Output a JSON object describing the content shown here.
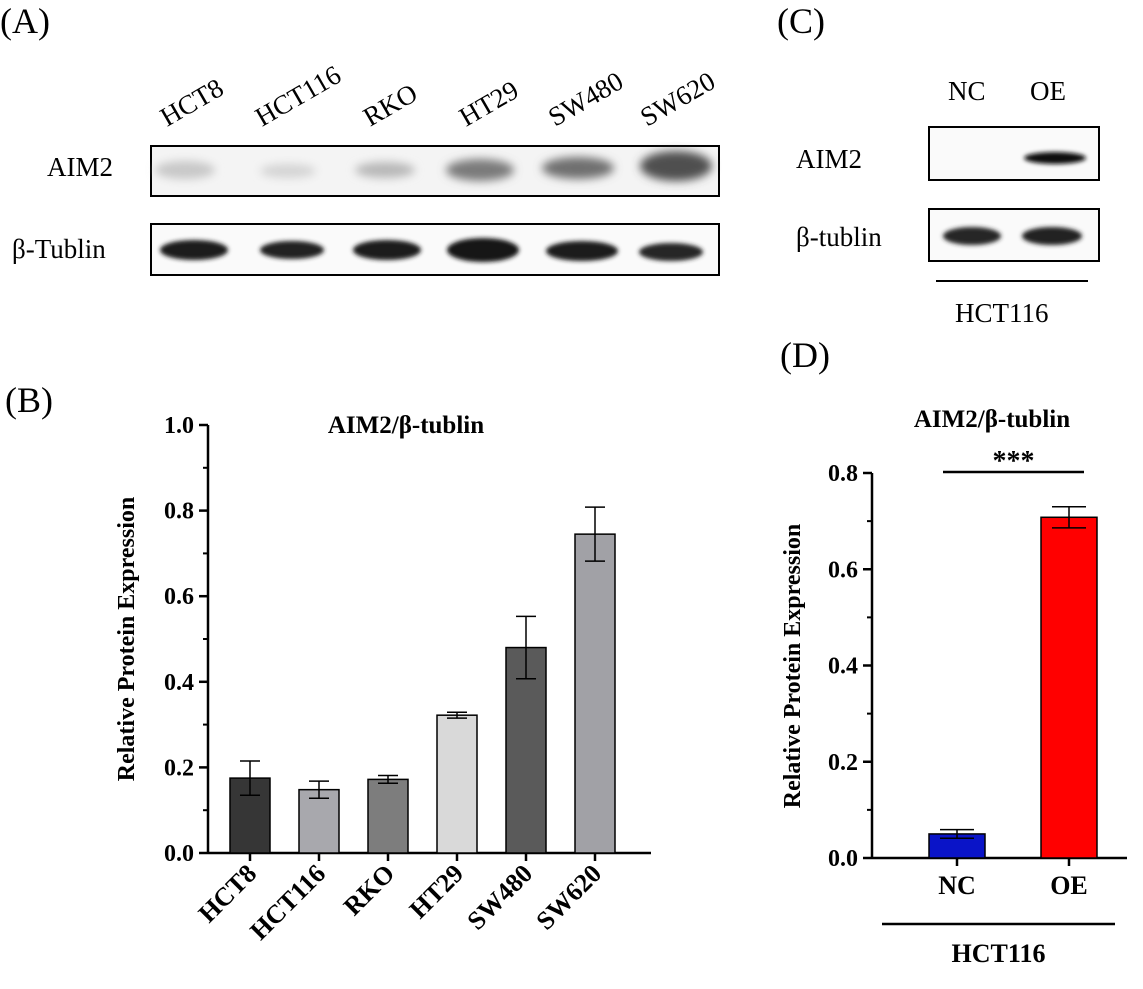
{
  "panel_a": {
    "letter": "(A)",
    "lanes": [
      "HCT8",
      "HCT116",
      "RKO",
      "HT29",
      "SW480",
      "SW620"
    ],
    "rows": [
      "AIM2",
      "β-Tublin"
    ]
  },
  "panel_c": {
    "letter": "(C)",
    "lanes": [
      "NC",
      "OE"
    ],
    "rows": [
      "AIM2",
      "β-tublin"
    ],
    "group": "HCT116"
  },
  "chart_data": [
    {
      "panel": "(B)",
      "type": "bar",
      "title": "AIM2/β-tublin",
      "xlabel": "",
      "ylabel": "Relative Protein Expression",
      "ylim": [
        0,
        1.0
      ],
      "yticks": [
        "0.0",
        "0.2",
        "0.4",
        "0.6",
        "0.8",
        "1.0"
      ],
      "categories": [
        "HCT8",
        "HCT116",
        "RKO",
        "HT29",
        "SW480",
        "SW620"
      ],
      "values": [
        0.175,
        0.148,
        0.172,
        0.322,
        0.48,
        0.745
      ],
      "errors": [
        0.04,
        0.02,
        0.009,
        0.007,
        0.073,
        0.063
      ],
      "colors": [
        "#363636",
        "#a8a8ad",
        "#7d7d7d",
        "#d9d9d9",
        "#5a5a5a",
        "#a1a1a6"
      ],
      "grid": false
    },
    {
      "panel": "(D)",
      "type": "bar",
      "title": "AIM2/β-tublin",
      "xlabel": "HCT116",
      "ylabel": "Relative Protein Expression",
      "ylim": [
        0,
        0.8
      ],
      "yticks": [
        "0.0",
        "0.2",
        "0.4",
        "0.6",
        "0.8"
      ],
      "categories": [
        "NC",
        "OE"
      ],
      "values": [
        0.05,
        0.708
      ],
      "errors": [
        0.009,
        0.022
      ],
      "colors": [
        "#0a14c8",
        "#ff0000"
      ],
      "significance": "***",
      "grid": false
    }
  ]
}
